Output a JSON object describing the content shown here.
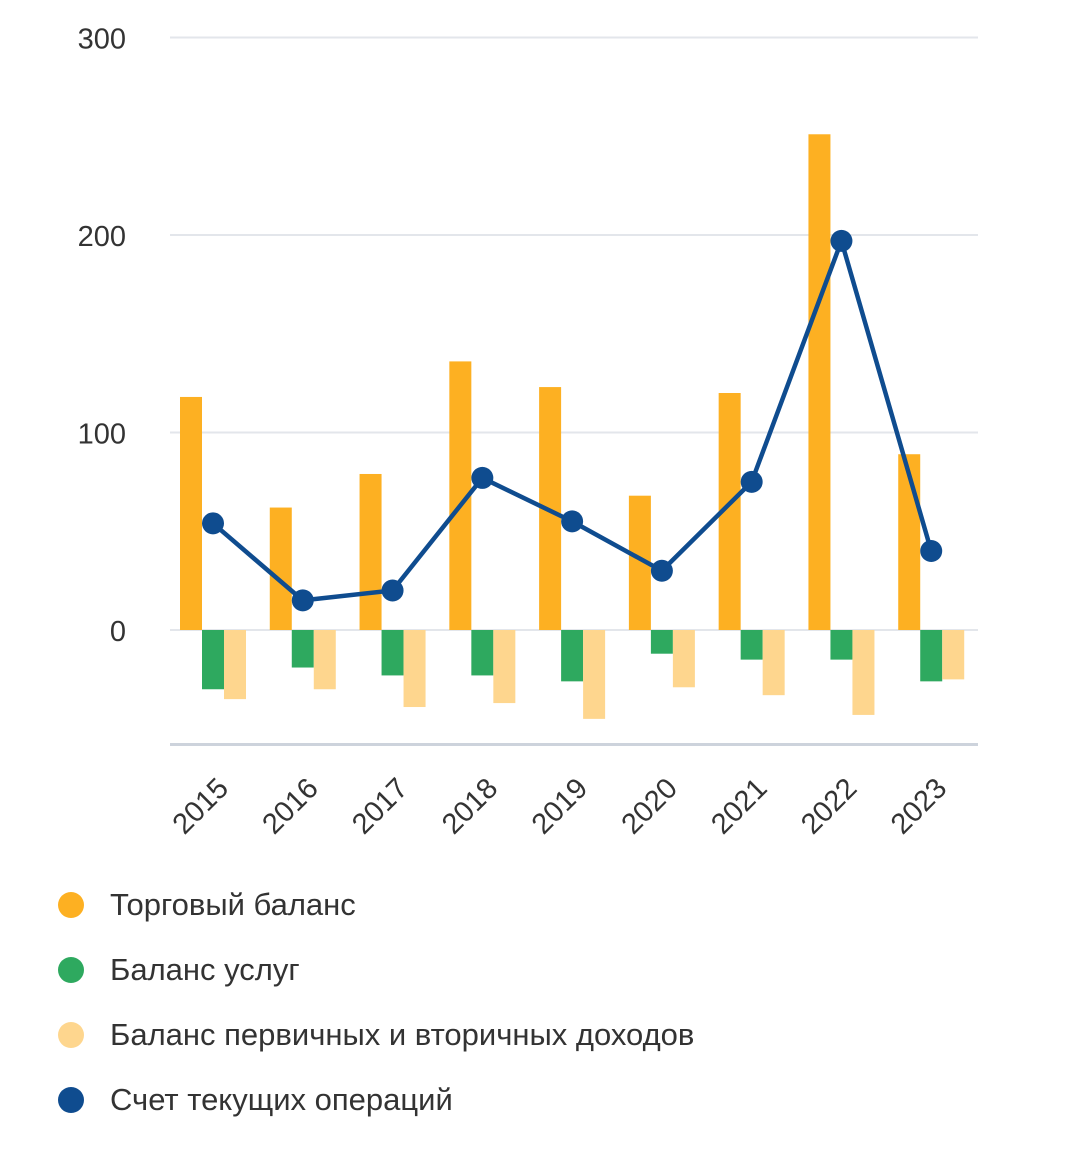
{
  "chart_data": {
    "type": "bar",
    "title": "",
    "xlabel": "",
    "ylabel": "",
    "ylim": [
      -58,
      300
    ],
    "y_ticks": [
      0,
      100,
      200,
      300
    ],
    "y_tick_labels": [
      "0",
      "100",
      "200",
      "300"
    ],
    "categories": [
      "2015",
      "2016",
      "2017",
      "2018",
      "2019",
      "2020",
      "2021",
      "2022",
      "2023"
    ],
    "grid": true,
    "legend_position": "bottom-left",
    "series": [
      {
        "name": "Торговый баланс",
        "kind": "bar",
        "color": "#FDB022",
        "values": [
          118,
          62,
          79,
          136,
          123,
          68,
          120,
          251,
          89
        ]
      },
      {
        "name": "Баланс услуг",
        "kind": "bar",
        "color": "#2EA95F",
        "values": [
          -30,
          -19,
          -23,
          -23,
          -26,
          -12,
          -15,
          -15,
          -26
        ]
      },
      {
        "name": "Баланс первичных и вторичных доходов",
        "kind": "bar",
        "color": "#FED68E",
        "values": [
          -35,
          -30,
          -39,
          -37,
          -45,
          -29,
          -33,
          -43,
          -25
        ]
      },
      {
        "name": "Счет текущих операций",
        "kind": "line",
        "color": "#0F4C8F",
        "values": [
          54,
          15,
          20,
          77,
          55,
          30,
          75,
          197,
          40
        ]
      }
    ]
  }
}
